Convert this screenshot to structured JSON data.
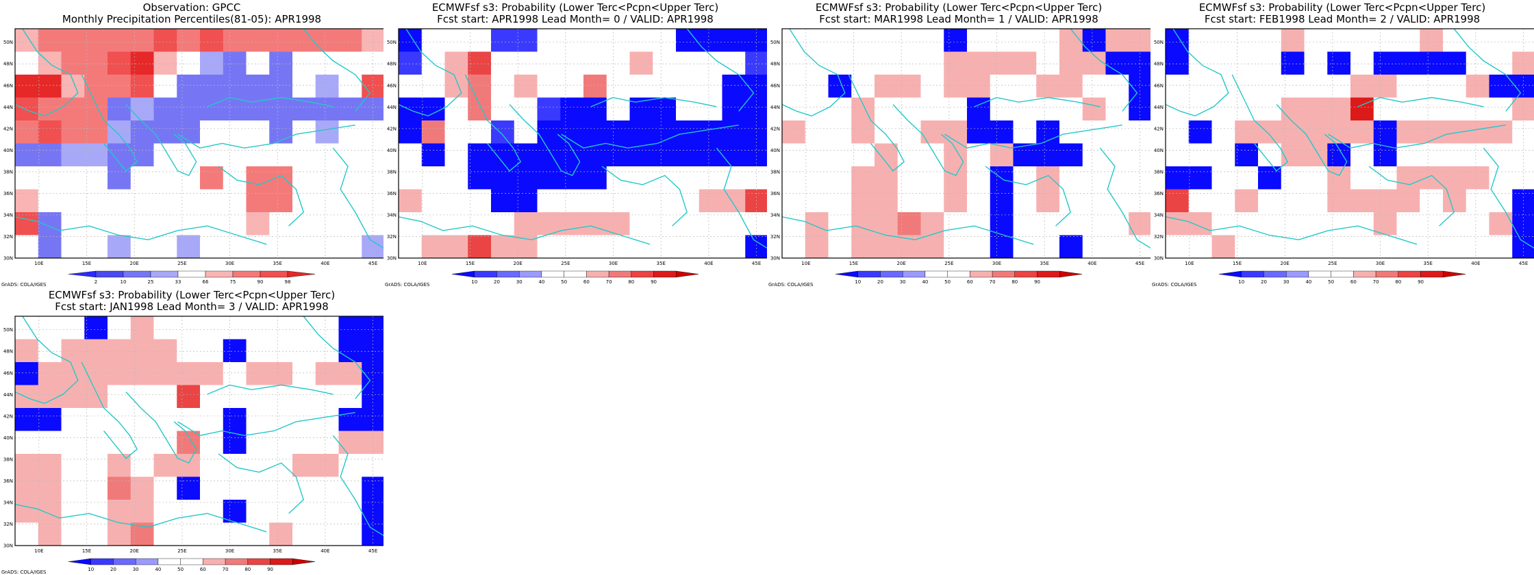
{
  "palette": {
    "obs": [
      "#2b2bff",
      "#4a4af0",
      "#7676f5",
      "#a8a8f8",
      "#ffffff",
      "#f9b4b4",
      "#f47a7a",
      "#f05050",
      "#e62828"
    ],
    "prob": [
      "#0a0aff",
      "#3a3aff",
      "#6a6aff",
      "#9a9aff",
      "#ffffff",
      "#ffffff",
      "#f7b0b0",
      "#f07a7a",
      "#ea4444",
      "#dd1a1a",
      "#cc0000"
    ],
    "coast": "#22c8c8"
  },
  "credit": "GrADS: COLA/IGES",
  "panels": [
    {
      "title1": "Observation: GPCC",
      "title2": "Monthly Precipitation Percentiles(81-05): APR1998",
      "colorbar": {
        "labels": [
          "2",
          "10",
          "25",
          "33",
          "66",
          "75",
          "90",
          "98"
        ],
        "colors": [
          "#2b2bff",
          "#4a4af0",
          "#7676f5",
          "#a8a8f8",
          "#ffffff",
          "#f9b4b4",
          "#f47a7a",
          "#f05050",
          "#e62828"
        ]
      }
    },
    {
      "title1": "ECMWFsf s3: Probability (Lower Terc<Pcpn<Upper Terc)",
      "title2": "Fcst start: APR1998   Lead Month= 0 / VALID: APR1998",
      "colorbar": {
        "labels": [
          "10",
          "20",
          "30",
          "40",
          "50",
          "60",
          "70",
          "80",
          "90"
        ],
        "colors": [
          "#0a0aff",
          "#3a3aff",
          "#6a6aff",
          "#9a9aff",
          "#ffffff",
          "#ffffff",
          "#f7b0b0",
          "#f07a7a",
          "#ea4444",
          "#dd1a1a",
          "#cc0000"
        ]
      }
    },
    {
      "title1": "ECMWFsf s3: Probability (Lower Terc<Pcpn<Upper Terc)",
      "title2": "Fcst start: MAR1998   Lead Month= 1 / VALID: APR1998",
      "colorbar": {
        "labels": [
          "10",
          "20",
          "30",
          "40",
          "50",
          "60",
          "70",
          "80",
          "90"
        ],
        "colors": [
          "#0a0aff",
          "#3a3aff",
          "#6a6aff",
          "#9a9aff",
          "#ffffff",
          "#ffffff",
          "#f7b0b0",
          "#f07a7a",
          "#ea4444",
          "#dd1a1a",
          "#cc0000"
        ]
      }
    },
    {
      "title1": "ECMWFsf s3: Probability (Lower Terc<Pcpn<Upper Terc)",
      "title2": "Fcst start: FEB1998   Lead Month= 2 / VALID: APR1998",
      "colorbar": {
        "labels": [
          "10",
          "20",
          "30",
          "40",
          "50",
          "60",
          "70",
          "80",
          "90"
        ],
        "colors": [
          "#0a0aff",
          "#3a3aff",
          "#6a6aff",
          "#9a9aff",
          "#ffffff",
          "#ffffff",
          "#f7b0b0",
          "#f07a7a",
          "#ea4444",
          "#dd1a1a",
          "#cc0000"
        ]
      }
    },
    {
      "title1": "ECMWFsf s3: Probability (Lower Terc<Pcpn<Upper Terc)",
      "title2": "Fcst start: JAN1998   Lead Month= 3 / VALID: APR1998",
      "colorbar": {
        "labels": [
          "10",
          "20",
          "30",
          "40",
          "50",
          "60",
          "70",
          "80",
          "90"
        ],
        "colors": [
          "#0a0aff",
          "#3a3aff",
          "#6a6aff",
          "#9a9aff",
          "#ffffff",
          "#ffffff",
          "#f7b0b0",
          "#f07a7a",
          "#ea4444",
          "#dd1a1a",
          "#cc0000"
        ]
      }
    }
  ],
  "chart_data": [
    {
      "type": "heatmap",
      "title": "Observation: GPCC",
      "subtitle": "Monthly Precipitation Percentiles(81-05): APR1998",
      "x_ticks": [
        "10E",
        "15E",
        "20E",
        "25E",
        "30E",
        "35E",
        "40E",
        "45E"
      ],
      "y_ticks": [
        "30N",
        "32N",
        "34N",
        "36N",
        "38N",
        "40N",
        "42N",
        "44N",
        "46N",
        "48N",
        "50N"
      ],
      "xlim": [
        7.5,
        46.25
      ],
      "ylim": [
        30,
        51.25
      ],
      "cell_size_deg": 2.5,
      "rows_top_to_bottom": [
        "4444444444444444444444444444444444444444444",
        "76600000000000000000000000000000000000000000",
        "77777766666766777777000000000000000000000000",
        "66667766662227762227740000000000000000000000",
        "88864466666772223624424440000000000000000000",
        "66622222222222222222222222000000000000000000",
        "66622224422222222222222222000000000000000000",
        "22222222444444444477676666000000000000000000",
        "44444444444664446444444444000000000000000000",
        "66444444444444444444444444000000000000000000"
      ]
    },
    {
      "type": "heatmap",
      "title": "ECMWFsf s3: Probability (Lower Terc<Pcpn<Upper Terc)",
      "subtitle": "Fcst start: APR1998   Lead Month= 0 / VALID: APR1998",
      "x_ticks": [
        "10E",
        "15E",
        "20E",
        "25E",
        "30E",
        "35E",
        "40E",
        "45E"
      ],
      "y_ticks": [
        "30N",
        "32N",
        "34N",
        "36N",
        "38N",
        "40N",
        "42N",
        "44N",
        "46N",
        "48N",
        "50N"
      ],
      "xlim": [
        7.5,
        46.25
      ],
      "ylim": [
        30,
        51.25
      ],
      "cell_size_deg": 2.5,
      "rows_top_to_bottom": [
        "1444111444444441111",
        "1467444444464441111",
        "4477474447444444441",
        "1144441111444444441",
        "4744141111144414411",
        "1414111111111111111",
        "4411111111111111111",
        "6444114444444444464",
        "4441114444444444477",
        "4466677774444444661"
      ]
    }
  ]
}
